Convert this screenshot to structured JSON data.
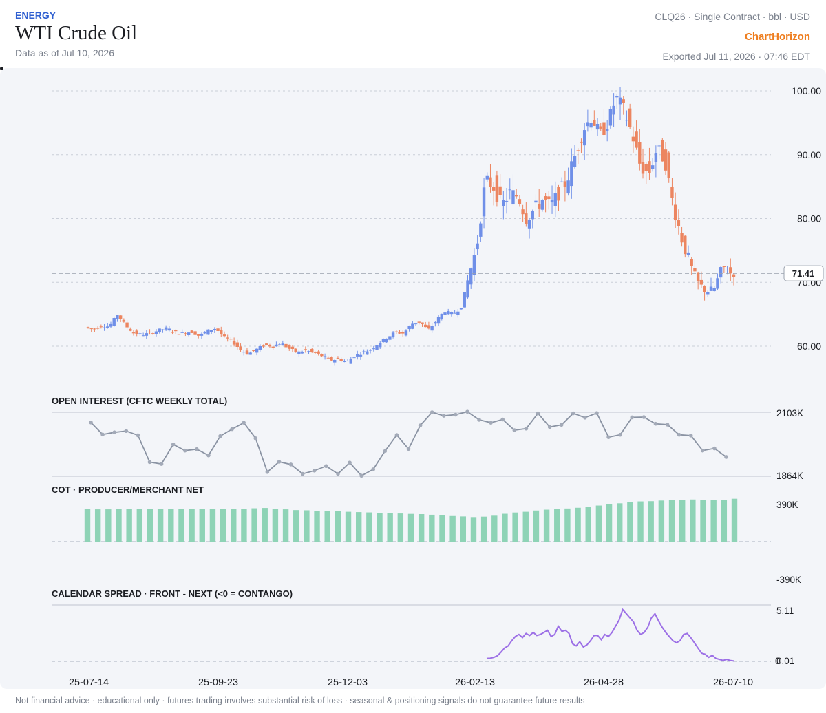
{
  "header": {
    "category": "ENERGY",
    "title": "WTI Crude Oil",
    "data_as_of": "Data as of Jul 10, 2026",
    "contract": "CLQ26 · Single Contract · bbl · USD",
    "brand": "ChartHorizon",
    "exported": "Exported Jul 11, 2026 · 07:46 EDT"
  },
  "footer": "Not financial advice · educational only · futures trading involves substantial risk of loss · seasonal & positioning signals do not guarantee future results",
  "colors": {
    "up": "#6f8fe8",
    "down": "#ec8560",
    "oi_line": "#8a93a3",
    "cot_bar": "#8ed3b6",
    "spread_line": "#9c6fe6",
    "grid": "#c9ced8",
    "panel_bg": "#f3f5f9"
  },
  "chart_data": [
    {
      "type": "candlestick",
      "title": "",
      "ylim": [
        60,
        100
      ],
      "yticks": [
        "100.00",
        "90.00",
        "80.00",
        "70.00",
        "60.00"
      ],
      "last_price": 71.41,
      "last_price_label": "71.41",
      "ohlc_anchors_close": [
        63.0,
        62.6,
        63.2,
        63.1,
        65.0,
        63.2,
        62.0,
        61.8,
        62.0,
        62.5,
        62.8,
        62.2,
        62.0,
        62.3,
        61.6,
        62.4,
        62.8,
        61.4,
        60.8,
        59.5,
        58.8,
        59.5,
        60.2,
        60.0,
        60.5,
        59.6,
        59.0,
        59.3,
        59.0,
        58.5,
        57.8,
        58.0,
        57.5,
        58.5,
        59.0,
        59.5,
        60.5,
        61.4,
        62.2,
        62.0,
        63.5,
        63.8,
        62.5,
        64.0,
        65.5,
        65.0,
        66.0,
        71.0,
        76.0,
        86.0,
        85.0,
        82.0,
        84.0,
        83.5,
        80.0,
        81.5,
        83.0,
        82.0,
        84.0,
        86.0,
        90.0,
        94.0,
        96.0,
        93.0,
        95.0,
        99.0,
        97.0,
        93.0,
        88.0,
        87.0,
        91.0,
        89.0,
        82.0,
        77.0,
        73.0,
        70.0,
        68.5,
        69.0,
        72.5,
        71.41
      ],
      "x_tick_labels": [
        "25-07-14",
        "25-09-23",
        "25-12-03",
        "26-02-13",
        "26-04-28",
        "26-07-10"
      ]
    },
    {
      "type": "line",
      "title": "OPEN INTEREST (CFTC WEEKLY TOTAL)",
      "ylim": [
        1864,
        2103
      ],
      "ylim_labels": [
        "2103K",
        "1864K"
      ],
      "values": [
        2065,
        2020,
        2028,
        2033,
        2017,
        1917,
        1910,
        1983,
        1960,
        1965,
        1942,
        2014,
        2040,
        2064,
        2006,
        1880,
        1918,
        1908,
        1873,
        1885,
        1902,
        1873,
        1915,
        1866,
        1890,
        1958,
        2018,
        1966,
        2054,
        2103,
        2090,
        2094,
        2105,
        2075,
        2064,
        2076,
        2036,
        2042,
        2099,
        2048,
        2056,
        2099,
        2083,
        2100,
        2010,
        2019,
        2084,
        2085,
        2060,
        2057,
        2019,
        2016,
        1960,
        1968,
        1936
      ]
    },
    {
      "type": "bar",
      "title": "COT · PRODUCER/MERCHANT NET",
      "ylim": [
        -390,
        390
      ],
      "ylim_labels": [
        "390K",
        "-390K"
      ],
      "values": [
        310,
        305,
        305,
        307,
        308,
        310,
        310,
        311,
        312,
        312,
        310,
        308,
        306,
        307,
        308,
        311,
        315,
        318,
        311,
        305,
        298,
        296,
        290,
        288,
        286,
        282,
        279,
        276,
        272,
        270,
        266,
        262,
        260,
        254,
        248,
        242,
        238,
        232,
        236,
        245,
        263,
        275,
        282,
        294,
        302,
        307,
        313,
        320,
        331,
        341,
        351,
        362,
        373,
        380,
        382,
        388,
        394,
        395,
        398,
        390,
        391,
        396,
        405
      ]
    },
    {
      "type": "line",
      "title": "CALENDAR SPREAD · FRONT - NEXT (<0 = CONTANGO)",
      "ylim": [
        0.01,
        5.11
      ],
      "ylim_labels": [
        "5.11",
        "0.01"
      ],
      "y_baseline_label": "0",
      "values": [
        0.3,
        0.32,
        0.4,
        0.55,
        0.9,
        1.3,
        1.5,
        2.0,
        2.4,
        2.6,
        2.3,
        2.7,
        2.5,
        2.8,
        2.5,
        2.6,
        2.8,
        3.0,
        2.4,
        2.6,
        3.4,
        2.9,
        3.0,
        2.7,
        1.7,
        1.5,
        1.9,
        1.4,
        1.6,
        2.0,
        2.5,
        2.5,
        2.1,
        2.6,
        2.4,
        2.8,
        3.4,
        4.0,
        5.0,
        4.6,
        4.2,
        3.8,
        3.0,
        2.6,
        2.8,
        3.3,
        4.2,
        4.6,
        3.9,
        3.3,
        2.8,
        2.4,
        2.0,
        1.8,
        2.0,
        2.6,
        2.7,
        2.3,
        1.8,
        1.3,
        0.8,
        0.7,
        0.4,
        0.6,
        0.3,
        0.2,
        0.1,
        0.2,
        0.1,
        0.05
      ]
    }
  ]
}
